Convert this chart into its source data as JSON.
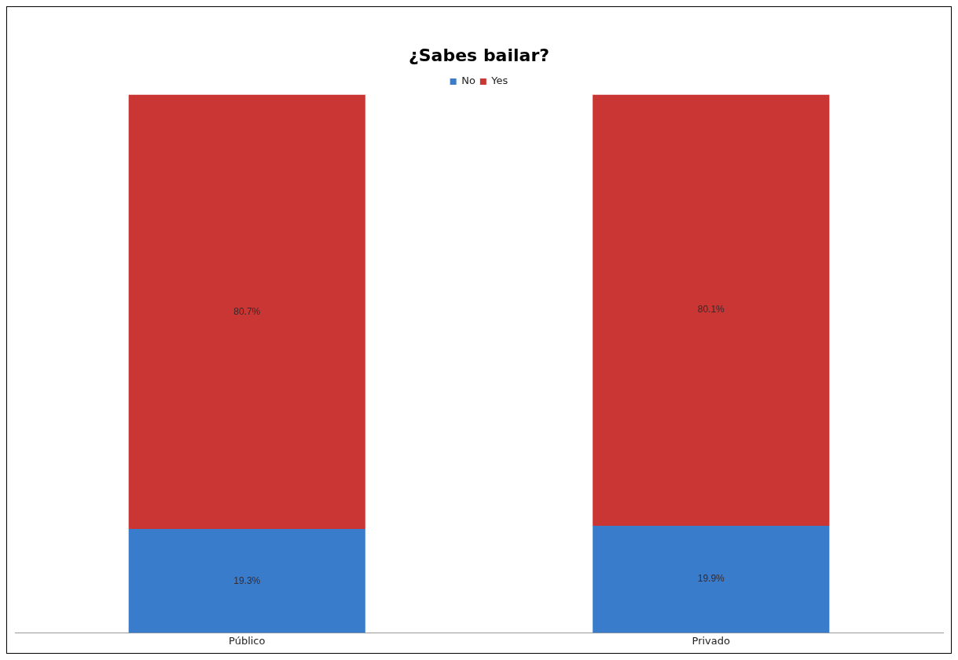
{
  "chart_data": {
    "type": "bar",
    "title": "¿Sabes bailar?",
    "categories": [
      "Público",
      "Privado"
    ],
    "stacked": true,
    "legend": "top",
    "grid": false,
    "data_labels": false,
    "series": [
      {
        "name": "No",
        "color": "#3a7ccc",
        "values": [
          19.3,
          19.9
        ],
        "value_labels": [
          "19.3%",
          "19.9%"
        ]
      },
      {
        "name": "Yes",
        "color": "#c93634",
        "values": [
          80.7,
          80.1
        ],
        "value_labels": [
          "80.7%",
          "80.1%"
        ]
      }
    ]
  }
}
